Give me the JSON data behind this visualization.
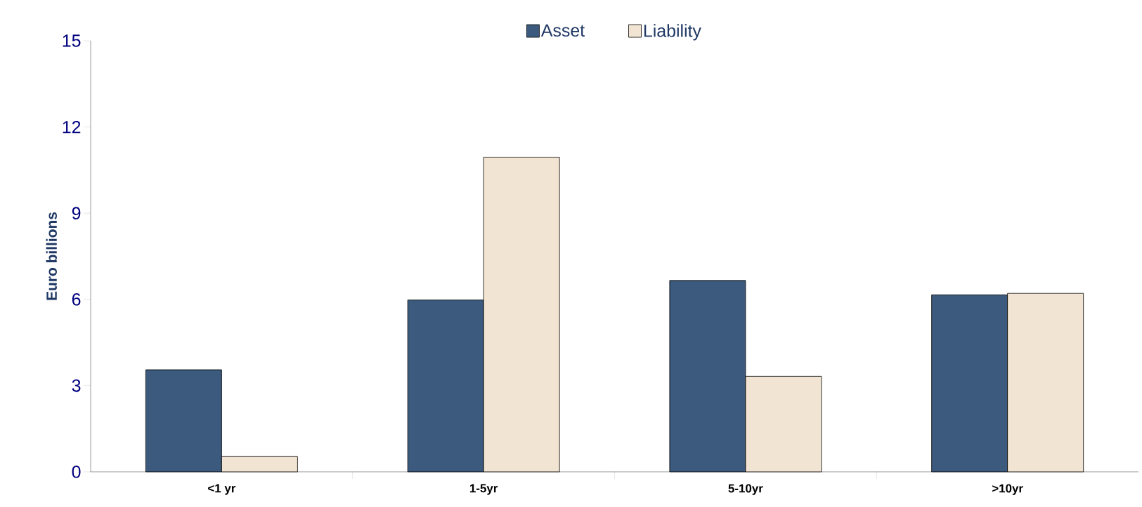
{
  "chart_data": {
    "type": "bar",
    "ylabel": "Euro billions",
    "categories": [
      "<1 yr",
      "1-5yr",
      "5-10yr",
      ">10yr"
    ],
    "series": [
      {
        "name": "Asset",
        "color": "#3b5a7d",
        "values": [
          3.55,
          5.98,
          6.66,
          6.16
        ]
      },
      {
        "name": "Liability",
        "color": "#f2e4d2",
        "values": [
          0.53,
          10.95,
          3.32,
          6.21
        ]
      }
    ],
    "ylim": [
      0,
      15
    ],
    "yticks": [
      0,
      3,
      6,
      9,
      12,
      15
    ],
    "grid": false,
    "legend": "top"
  }
}
